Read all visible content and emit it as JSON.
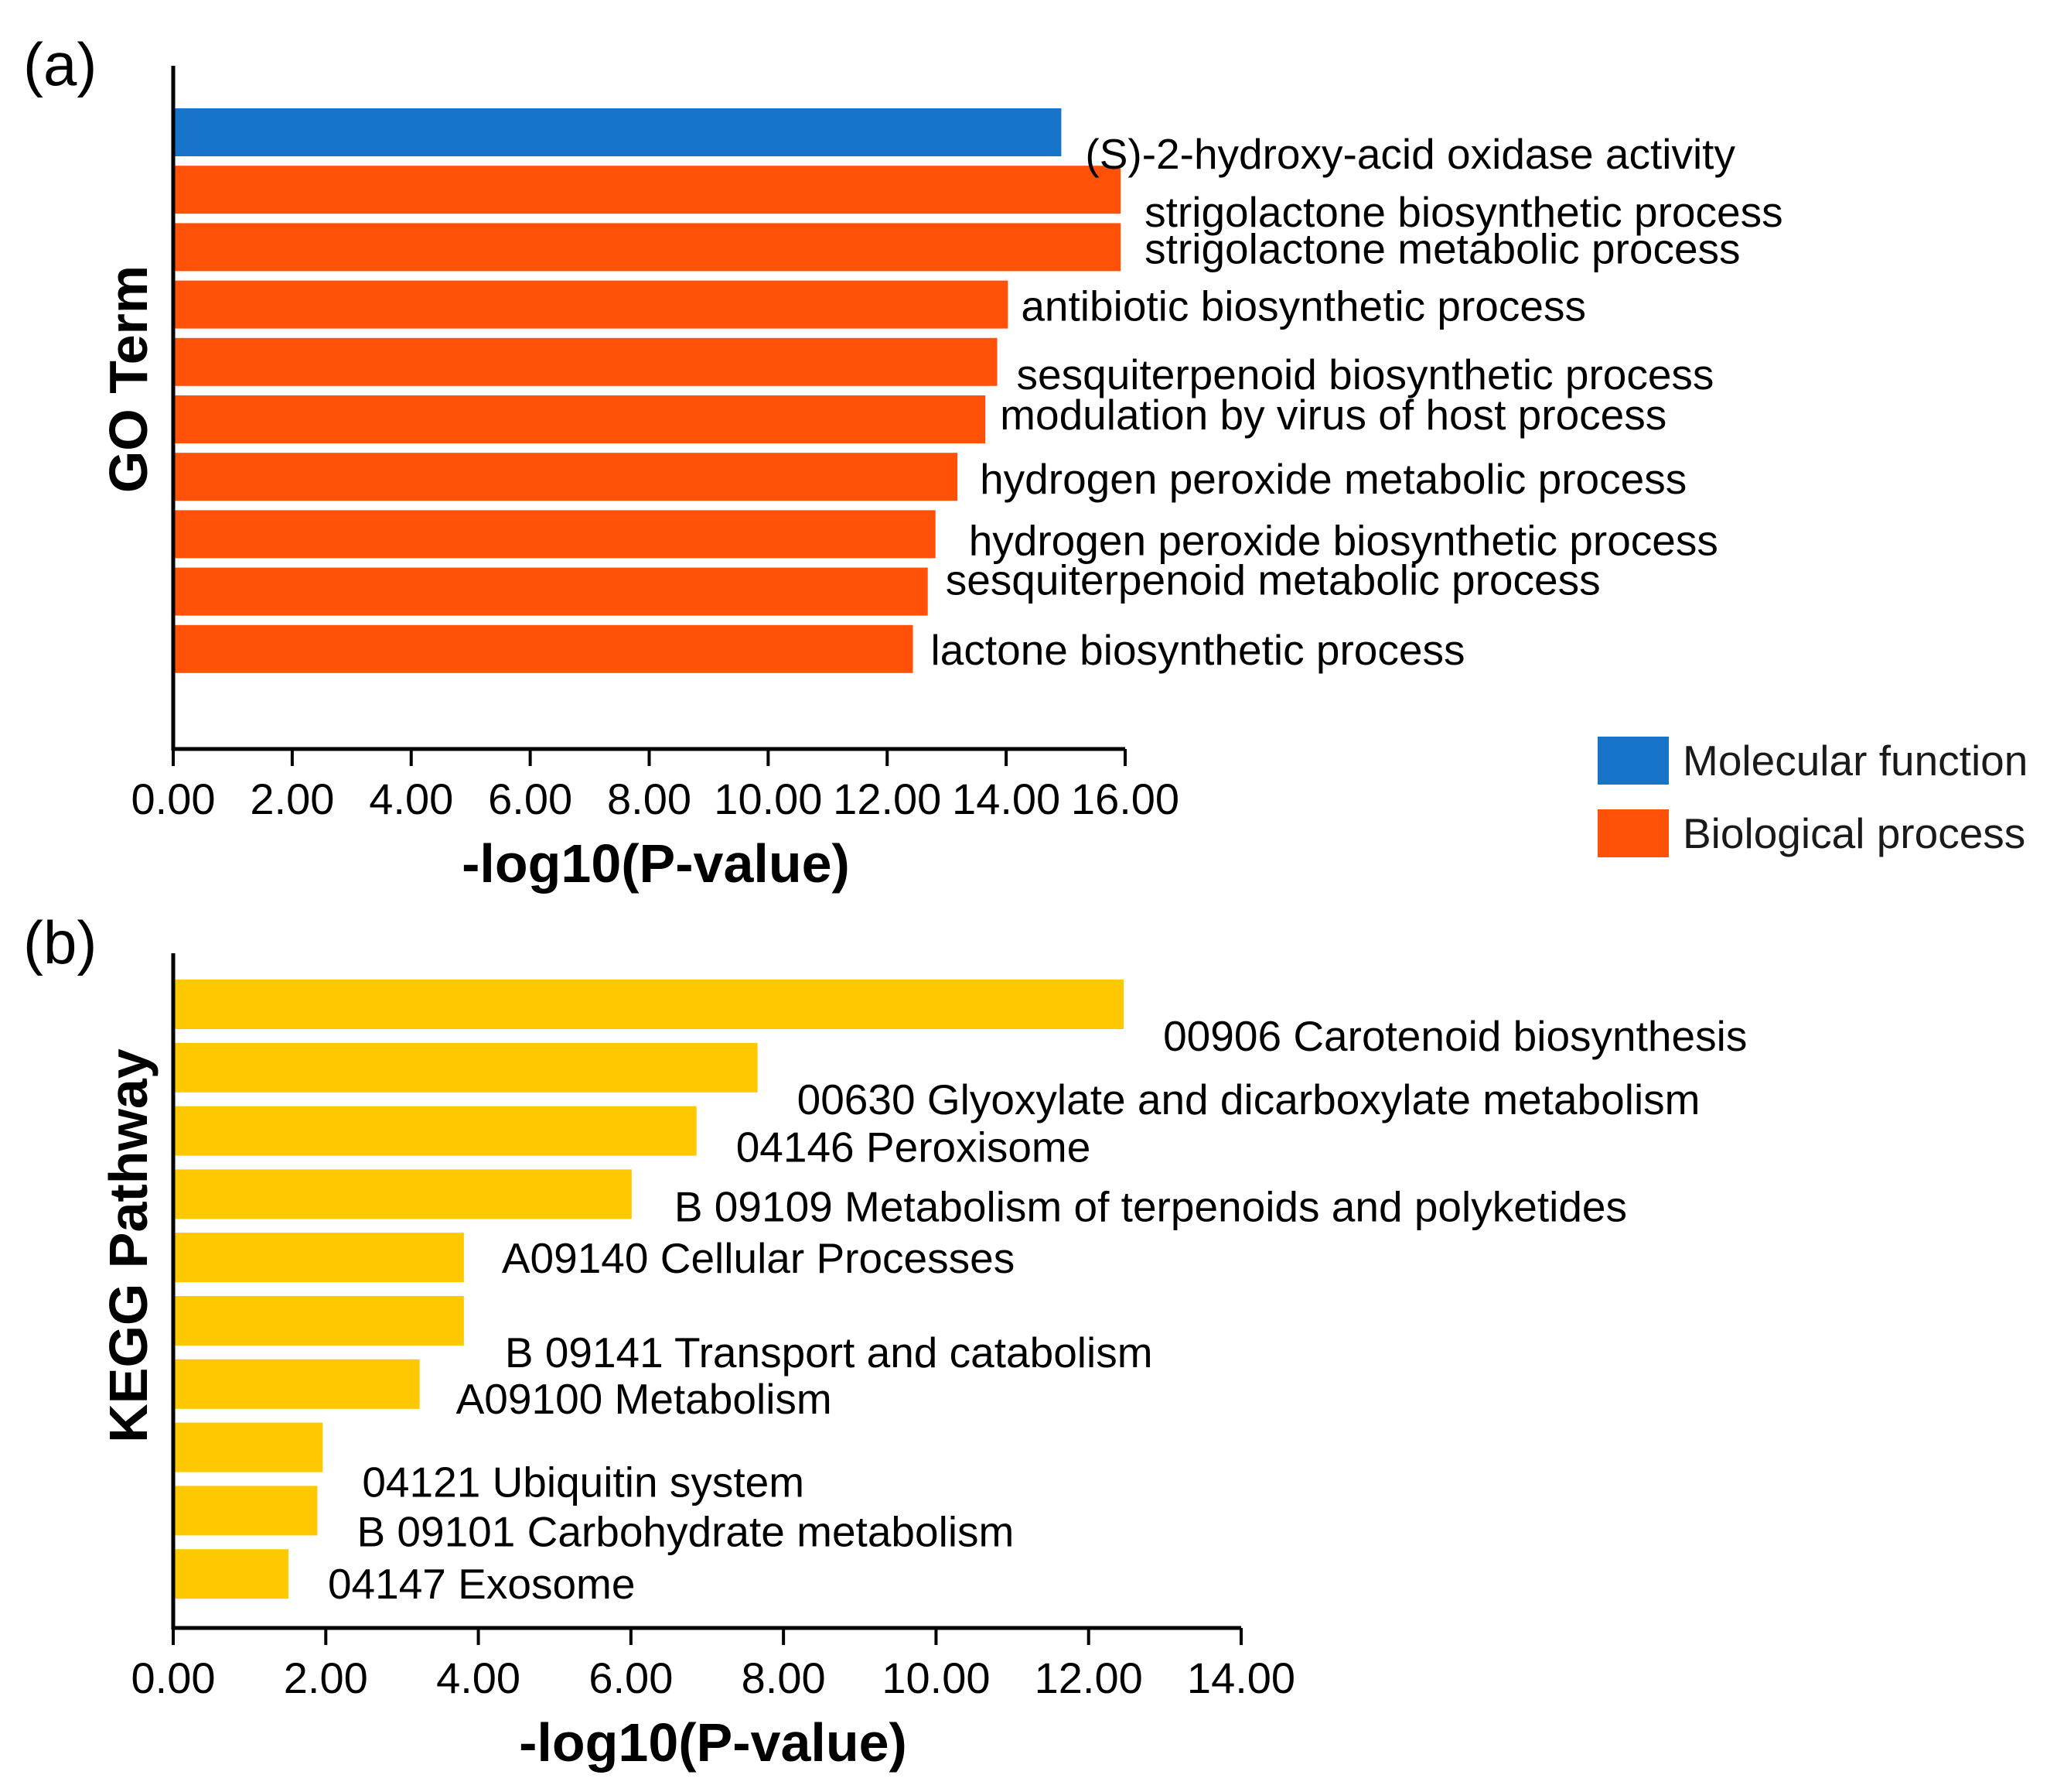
{
  "chart_data": [
    {
      "type": "bar",
      "orientation": "horizontal",
      "panel_label": "(a)",
      "ylabel": "GO Term",
      "xlabel": "-log10(P-value)",
      "xlim": [
        0,
        16
      ],
      "xticks": [
        "0.00",
        "2.00",
        "4.00",
        "6.00",
        "8.00",
        "10.00",
        "12.00",
        "14.00",
        "16.00"
      ],
      "categories": [
        "(S)-2-hydroxy-acid oxidase activity",
        "strigolactone biosynthetic process",
        "strigolactone metabolic process",
        "antibiotic biosynthetic process",
        "sesquiterpenoid biosynthetic process",
        "modulation by virus of host process",
        "hydrogen peroxide metabolic process",
        "hydrogen peroxide biosynthetic process",
        "sesquiterpenoid metabolic process",
        "lactone biosynthetic process"
      ],
      "values": [
        14.95,
        15.95,
        15.95,
        14.05,
        13.87,
        13.67,
        13.2,
        12.83,
        12.7,
        12.45
      ],
      "groups": [
        "Molecular function",
        "Biological process",
        "Biological process",
        "Biological process",
        "Biological process",
        "Biological process",
        "Biological process",
        "Biological process",
        "Biological process",
        "Biological process"
      ],
      "legend": [
        {
          "name": "Molecular function",
          "color": "#1874C8"
        },
        {
          "name": "Biological process",
          "color": "#FF5208"
        }
      ],
      "legend_position": "bottom-right"
    },
    {
      "type": "bar",
      "orientation": "horizontal",
      "panel_label": "(b)",
      "ylabel": "KEGG Pathway",
      "xlabel": "-log10(P-value)",
      "xlim": [
        0,
        14
      ],
      "xticks": [
        "0.00",
        "2.00",
        "4.00",
        "6.00",
        "8.00",
        "10.00",
        "12.00",
        "14.00"
      ],
      "categories": [
        "00906 Carotenoid biosynthesis",
        "00630 Glyoxylate and dicarboxylate metabolism",
        "04146 Peroxisome",
        "B  09109 Metabolism of terpenoids and polyketides",
        "A09140 Cellular Processes",
        "B  09141 Transport and catabolism",
        "A09100 Metabolism",
        "04121  Ubiquitin system",
        "B  09101 Carbohydrate metabolism",
        "04147 Exosome"
      ],
      "values": [
        12.45,
        7.65,
        6.85,
        6.0,
        3.8,
        3.8,
        3.22,
        1.95,
        1.88,
        1.5
      ],
      "color": "#FFC800"
    }
  ]
}
